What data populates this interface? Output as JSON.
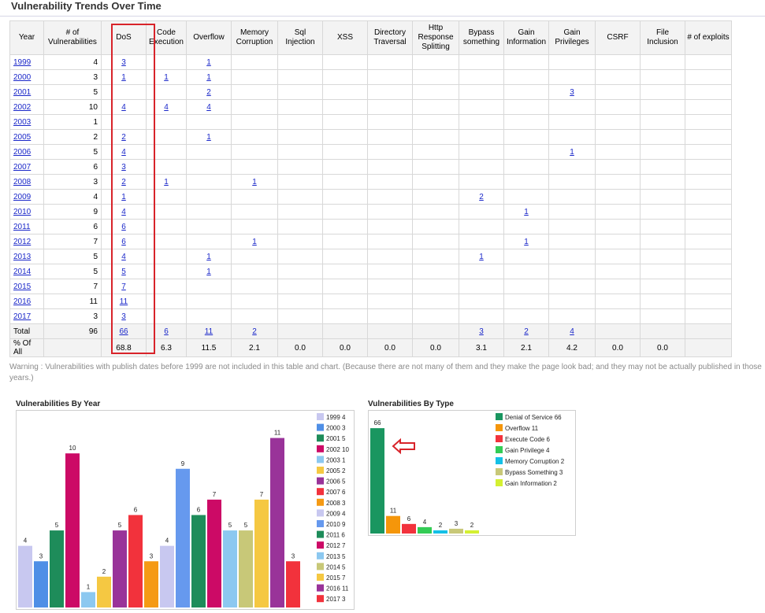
{
  "page_title": "Vulnerability Trends Over Time",
  "table": {
    "headers": [
      "Year",
      "# of Vulnerabilities",
      "DoS",
      "Code Execution",
      "Overflow",
      "Memory Corruption",
      "Sql Injection",
      "XSS",
      "Directory Traversal",
      "Http Response Splitting",
      "Bypass something",
      "Gain Information",
      "Gain Privileges",
      "CSRF",
      "File Inclusion",
      "# of exploits"
    ],
    "rows": [
      {
        "year": "1999",
        "vulns": "4",
        "cells": [
          "3",
          "",
          "1",
          "",
          "",
          "",
          "",
          "",
          "",
          "",
          "",
          "",
          "",
          ""
        ]
      },
      {
        "year": "2000",
        "vulns": "3",
        "cells": [
          "1",
          "1",
          "1",
          "",
          "",
          "",
          "",
          "",
          "",
          "",
          "",
          "",
          "",
          ""
        ]
      },
      {
        "year": "2001",
        "vulns": "5",
        "cells": [
          "",
          "",
          "2",
          "",
          "",
          "",
          "",
          "",
          "",
          "",
          "3",
          "",
          "",
          ""
        ]
      },
      {
        "year": "2002",
        "vulns": "10",
        "cells": [
          "4",
          "4",
          "4",
          "",
          "",
          "",
          "",
          "",
          "",
          "",
          "",
          "",
          "",
          ""
        ]
      },
      {
        "year": "2003",
        "vulns": "1",
        "cells": [
          "",
          "",
          "",
          "",
          "",
          "",
          "",
          "",
          "",
          "",
          "",
          "",
          "",
          ""
        ]
      },
      {
        "year": "2005",
        "vulns": "2",
        "cells": [
          "2",
          "",
          "1",
          "",
          "",
          "",
          "",
          "",
          "",
          "",
          "",
          "",
          "",
          ""
        ]
      },
      {
        "year": "2006",
        "vulns": "5",
        "cells": [
          "4",
          "",
          "",
          "",
          "",
          "",
          "",
          "",
          "",
          "",
          "1",
          "",
          "",
          ""
        ]
      },
      {
        "year": "2007",
        "vulns": "6",
        "cells": [
          "3",
          "",
          "",
          "",
          "",
          "",
          "",
          "",
          "",
          "",
          "",
          "",
          "",
          ""
        ]
      },
      {
        "year": "2008",
        "vulns": "3",
        "cells": [
          "2",
          "1",
          "",
          "1",
          "",
          "",
          "",
          "",
          "",
          "",
          "",
          "",
          "",
          ""
        ]
      },
      {
        "year": "2009",
        "vulns": "4",
        "cells": [
          "1",
          "",
          "",
          "",
          "",
          "",
          "",
          "",
          "2",
          "",
          "",
          "",
          "",
          ""
        ]
      },
      {
        "year": "2010",
        "vulns": "9",
        "cells": [
          "4",
          "",
          "",
          "",
          "",
          "",
          "",
          "",
          "",
          "1",
          "",
          "",
          "",
          ""
        ]
      },
      {
        "year": "2011",
        "vulns": "6",
        "cells": [
          "6",
          "",
          "",
          "",
          "",
          "",
          "",
          "",
          "",
          "",
          "",
          "",
          "",
          ""
        ]
      },
      {
        "year": "2012",
        "vulns": "7",
        "cells": [
          "6",
          "",
          "",
          "1",
          "",
          "",
          "",
          "",
          "",
          "1",
          "",
          "",
          "",
          ""
        ]
      },
      {
        "year": "2013",
        "vulns": "5",
        "cells": [
          "4",
          "",
          "1",
          "",
          "",
          "",
          "",
          "",
          "1",
          "",
          "",
          "",
          "",
          ""
        ]
      },
      {
        "year": "2014",
        "vulns": "5",
        "cells": [
          "5",
          "",
          "1",
          "",
          "",
          "",
          "",
          "",
          "",
          "",
          "",
          "",
          "",
          ""
        ]
      },
      {
        "year": "2015",
        "vulns": "7",
        "cells": [
          "7",
          "",
          "",
          "",
          "",
          "",
          "",
          "",
          "",
          "",
          "",
          "",
          "",
          ""
        ]
      },
      {
        "year": "2016",
        "vulns": "11",
        "cells": [
          "11",
          "",
          "",
          "",
          "",
          "",
          "",
          "",
          "",
          "",
          "",
          "",
          "",
          ""
        ]
      },
      {
        "year": "2017",
        "vulns": "3",
        "cells": [
          "3",
          "",
          "",
          "",
          "",
          "",
          "",
          "",
          "",
          "",
          "",
          "",
          "",
          ""
        ]
      }
    ],
    "total": {
      "label": "Total",
      "vulns": "96",
      "cells": [
        "66",
        "6",
        "11",
        "2",
        "",
        "",
        "",
        "",
        "3",
        "2",
        "4",
        "",
        "",
        ""
      ]
    },
    "percent": {
      "label": "% Of All",
      "vulns": "",
      "cells": [
        "68.8",
        "6.3",
        "11.5",
        "2.1",
        "0.0",
        "0.0",
        "0.0",
        "0.0",
        "3.1",
        "2.1",
        "4.2",
        "0.0",
        "0.0",
        ""
      ]
    }
  },
  "warning_text": "Warning : Vulnerabilities with publish dates before 1999 are not included in this table and chart. (Because there are not many of them and they make the page look bad; and they may not be actually published in those years.)",
  "chart_data": [
    {
      "type": "bar",
      "title": "Vulnerabilities By Year",
      "categories": [
        "1999",
        "2000",
        "2001",
        "2002",
        "2003",
        "2005",
        "2006",
        "2007",
        "2008",
        "2009",
        "2010",
        "2011",
        "2012",
        "2013",
        "2014",
        "2015",
        "2016",
        "2017"
      ],
      "values": [
        4,
        3,
        5,
        10,
        1,
        2,
        5,
        6,
        3,
        4,
        9,
        6,
        7,
        5,
        5,
        7,
        11,
        3
      ],
      "colors": [
        "#c8c8f0",
        "#4f8fe6",
        "#1e8c5a",
        "#cc0a66",
        "#8cc8f0",
        "#f5c842",
        "#993399",
        "#f2323c",
        "#f59a14",
        "#c8c8f0",
        "#6699ee",
        "#1e8c5a",
        "#cc0a66",
        "#8cc8f0",
        "#c8c878",
        "#f5c842",
        "#993399",
        "#f2323c"
      ],
      "legend": [
        "1999 4",
        "2000 3",
        "2001 5",
        "2002 10",
        "2003 1",
        "2005 2",
        "2006 5",
        "2007 6",
        "2008 3",
        "2009 4",
        "2010 9",
        "2011 6",
        "2012 7",
        "2013 5",
        "2014 5",
        "2015 7",
        "2016 11",
        "2017 3"
      ],
      "legend_position": "right",
      "ylim": [
        0,
        12
      ]
    },
    {
      "type": "bar",
      "title": "Vulnerabilities By Type",
      "categories": [
        "Denial of Service",
        "Overflow",
        "Execute Code",
        "Gain Privilege",
        "Memory Corruption",
        "Bypass Something",
        "Gain Information"
      ],
      "values": [
        66,
        11,
        6,
        4,
        2,
        3,
        2
      ],
      "colors": [
        "#1a9660",
        "#f5960a",
        "#f2323c",
        "#33cc55",
        "#14c0e6",
        "#c8c878",
        "#d4f032"
      ],
      "legend": [
        "Denial of Service 66",
        "Overflow 11",
        "Execute Code 6",
        "Gain Privilege 4",
        "Memory Corruption 2",
        "Bypass Something 3",
        "Gain Information 2"
      ],
      "legend_position": "right",
      "ylim": [
        0,
        70
      ]
    }
  ],
  "colors": {
    "link": "#1a27c9",
    "highlight": "#d8232a",
    "arrow": "#d8232a",
    "header_bg": "#f3f3f3"
  }
}
